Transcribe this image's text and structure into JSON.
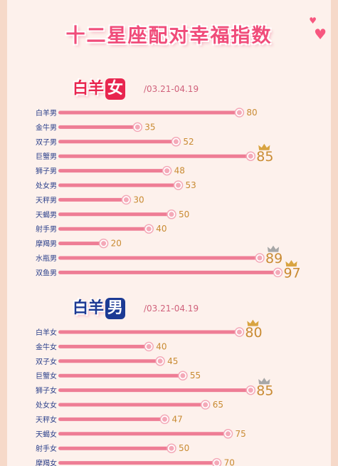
{
  "page": {
    "title": "十二星座配对幸福指数",
    "colors": {
      "bar": "#ee7d95",
      "dot": "#f4a9b8",
      "value": "#c98b33",
      "crown": "#d9a441",
      "silver_crown": "#a7a7a7",
      "title": "#f04c7a"
    }
  },
  "sections": [
    {
      "badge_prefix": "白羊",
      "badge_highlight": "女",
      "date_range": "/03.21-04.19",
      "badge_color": "#e8264f"
    },
    {
      "badge_prefix": "白羊",
      "badge_highlight": "男",
      "date_range": "/03.21-04.19",
      "badge_color": "#1c3a94"
    }
  ],
  "chart_data": [
    {
      "type": "bar",
      "categories": [
        "白羊男",
        "金牛男",
        "双子男",
        "巨蟹男",
        "狮子男",
        "处女男",
        "天秤男",
        "天蝎男",
        "射手男",
        "摩羯男",
        "水瓶男",
        "双鱼男"
      ],
      "values": [
        80,
        35,
        52,
        85,
        48,
        53,
        30,
        50,
        40,
        20,
        89,
        97
      ],
      "highlighted": [
        85,
        89,
        97
      ],
      "xlim": [
        0,
        100
      ]
    },
    {
      "type": "bar",
      "categories": [
        "白羊女",
        "金牛女",
        "双子女",
        "巨蟹女",
        "狮子女",
        "处女女",
        "天秤女",
        "天蝎女",
        "射手女",
        "摩羯女"
      ],
      "values": [
        80,
        40,
        45,
        55,
        85,
        65,
        47,
        75,
        50,
        70
      ],
      "highlighted": [
        80,
        85
      ],
      "xlim": [
        0,
        100
      ]
    }
  ]
}
